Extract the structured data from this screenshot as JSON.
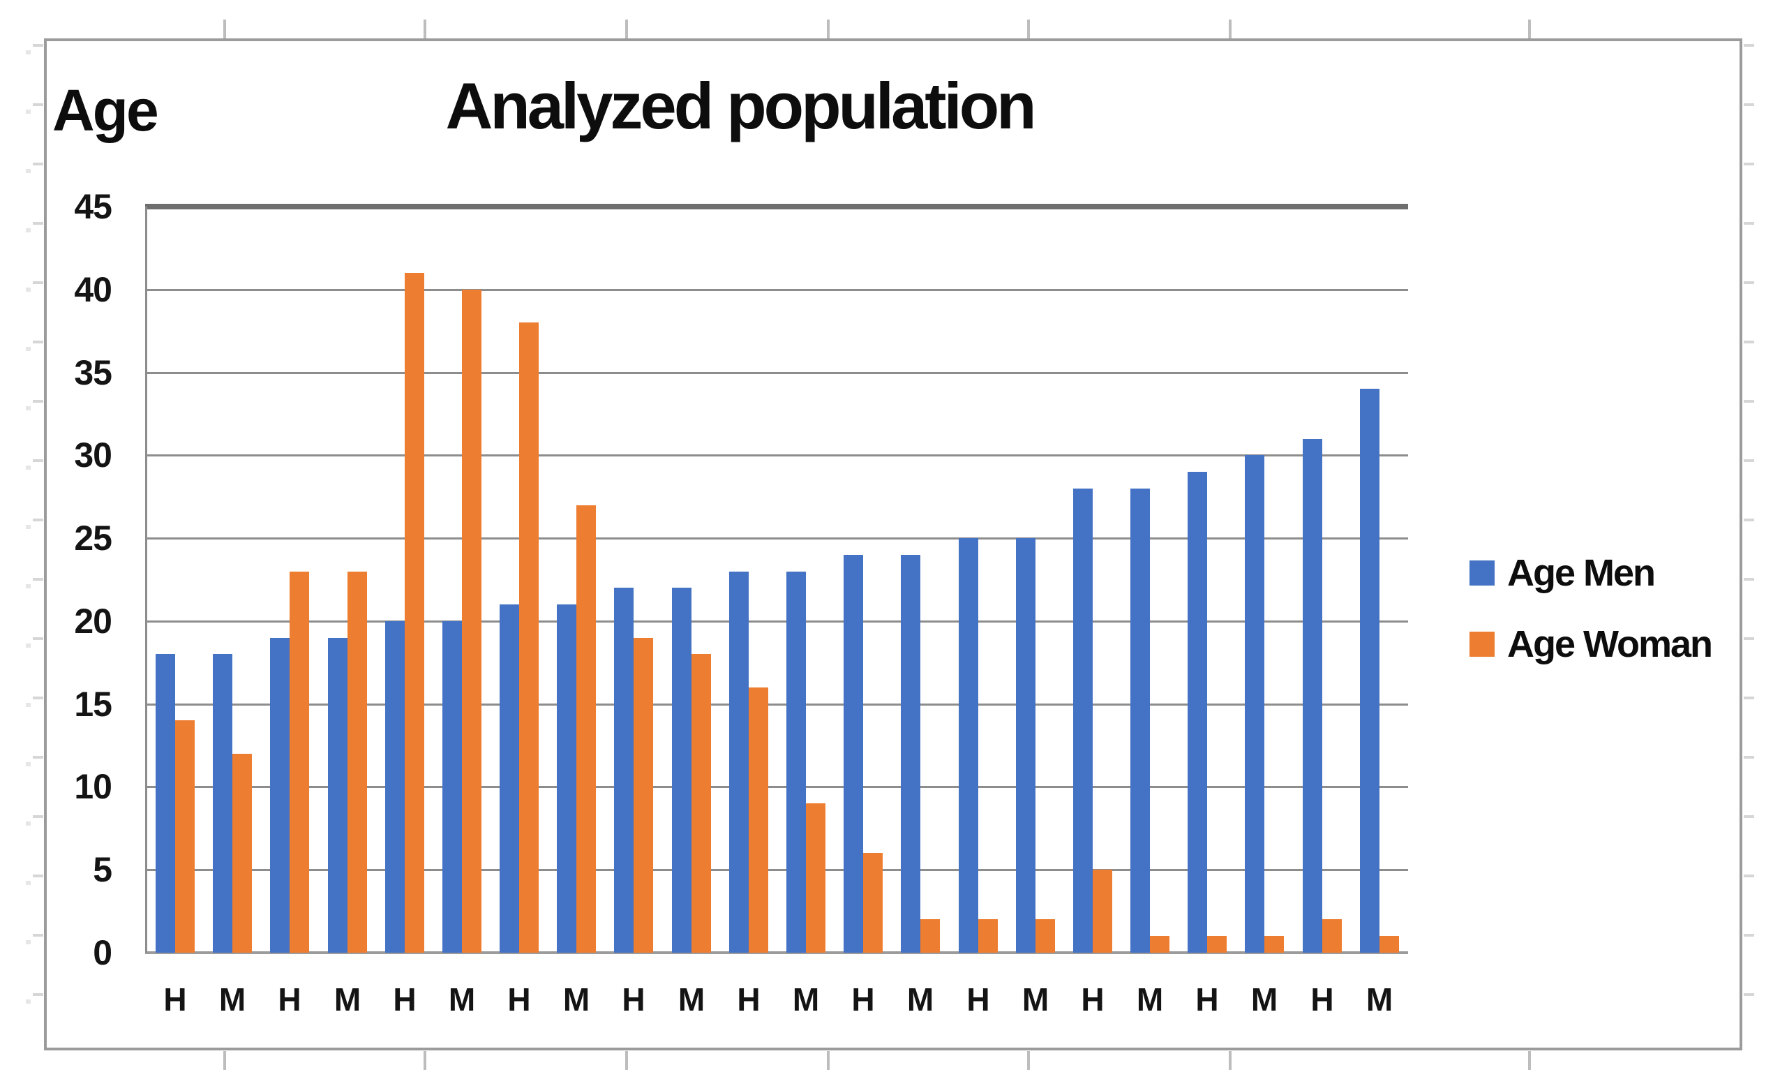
{
  "chart_data": {
    "type": "bar",
    "title": "Analyzed population",
    "y_axis_label": "Age",
    "xlabel": "",
    "ylabel": "Age",
    "ylim": [
      0,
      45
    ],
    "y_ticks": [
      0,
      5,
      10,
      15,
      20,
      25,
      30,
      35,
      40,
      45
    ],
    "grid": true,
    "legend_position": "right",
    "categories": [
      "H",
      "M",
      "H",
      "M",
      "H",
      "M",
      "H",
      "M",
      "H",
      "M",
      "H",
      "M",
      "H",
      "M",
      "H",
      "M",
      "H",
      "M",
      "H",
      "M",
      "H",
      "M"
    ],
    "series": [
      {
        "name": "Age Men",
        "color": "#4472C4",
        "values": [
          18,
          18,
          19,
          19,
          20,
          20,
          21,
          21,
          22,
          22,
          23,
          23,
          24,
          24,
          25,
          25,
          28,
          28,
          29,
          30,
          31,
          34
        ]
      },
      {
        "name": "Age Woman",
        "color": "#ED7D31",
        "values": [
          14,
          12,
          23,
          23,
          41,
          40,
          38,
          27,
          19,
          18,
          16,
          9,
          6,
          2,
          2,
          2,
          5,
          1,
          1,
          1,
          2,
          1
        ]
      }
    ]
  },
  "colors": {
    "men": "#4472C4",
    "woman": "#ED7D31",
    "gridline": "#8d8d8d",
    "frame_border": "#9b9b9b",
    "text": "#0d0d0d"
  }
}
